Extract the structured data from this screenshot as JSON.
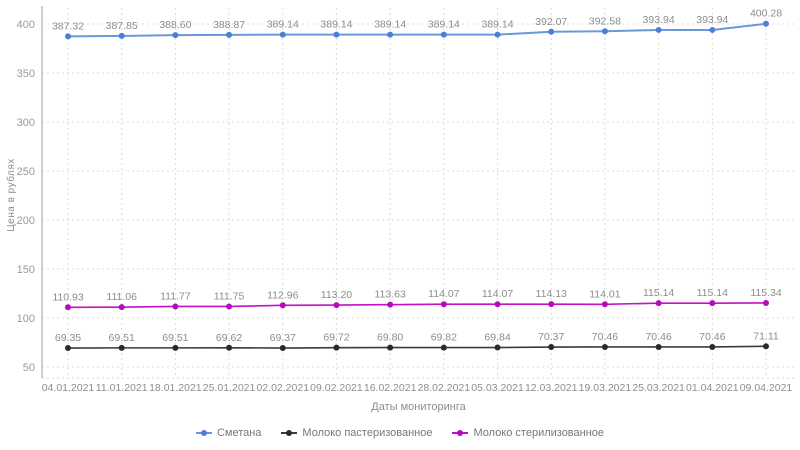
{
  "chart_data": {
    "type": "line",
    "title": "",
    "xlabel": "Даты мониторинга",
    "ylabel": "Цена в рублях",
    "ylim": [
      50,
      400
    ],
    "yticks": [
      50,
      100,
      150,
      200,
      250,
      300,
      350,
      400
    ],
    "grid": true,
    "legend_position": "bottom",
    "x": [
      "04.01.2021",
      "11.01.2021",
      "18.01.2021",
      "25.01.2021",
      "02.02.2021",
      "09.02.2021",
      "16.02.2021",
      "28.02.2021",
      "05.03.2021",
      "12.03.2021",
      "19.03.2021",
      "25.03.2021",
      "01.04.2021",
      "09.04.2021"
    ],
    "series": [
      {
        "name": "Сметана",
        "line_color": "#6b97dd",
        "point_color": "#4a7fd4",
        "values": [
          387.32,
          387.85,
          388.6,
          388.87,
          389.14,
          389.14,
          389.14,
          389.14,
          389.14,
          392.07,
          392.58,
          393.94,
          393.94,
          400.28
        ]
      },
      {
        "name": "Молоко пастеризованное",
        "line_color": "#3b3b3b",
        "point_color": "#2a2a2a",
        "values": [
          69.35,
          69.51,
          69.51,
          69.62,
          69.37,
          69.72,
          69.8,
          69.82,
          69.84,
          70.37,
          70.46,
          70.46,
          70.46,
          71.11
        ]
      },
      {
        "name": "Молоко стерилизованное",
        "line_color": "#c211c9",
        "point_color": "#b30dbb",
        "values": [
          110.93,
          111.06,
          111.77,
          111.75,
          112.96,
          113.2,
          113.63,
          114.07,
          114.07,
          114.13,
          114.01,
          115.14,
          115.14,
          115.34
        ]
      }
    ]
  }
}
